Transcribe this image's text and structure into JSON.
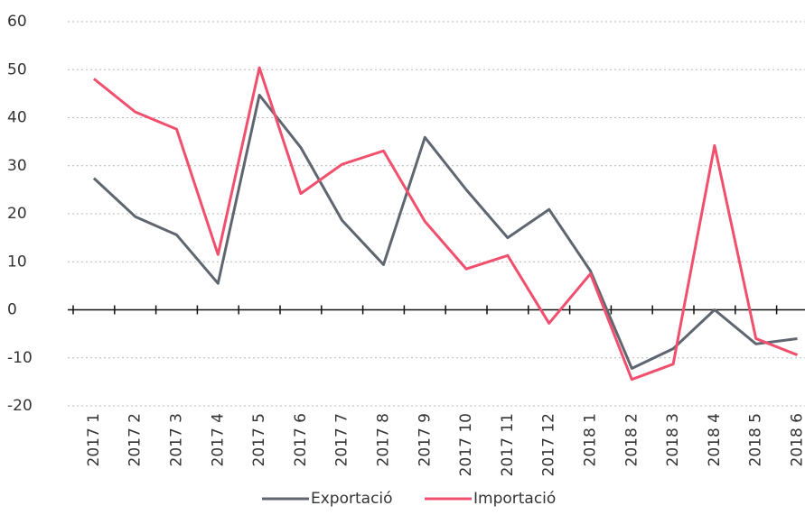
{
  "chart_data": {
    "type": "line",
    "categories": [
      "2017 1",
      "2017 2",
      "2017 3",
      "2017 4",
      "2017 5",
      "2017 6",
      "2017 7",
      "2017 8",
      "2017 9",
      "2017 10",
      "2017 11",
      "2017 12",
      "2018 1",
      "2018 2",
      "2018 3",
      "2018 4",
      "2018 5",
      "2018 6"
    ],
    "series": [
      {
        "name": "Exportació",
        "color": "#5f6670",
        "values": [
          27.4,
          19.4,
          15.6,
          5.5,
          44.7,
          33.8,
          18.6,
          9.4,
          35.9,
          25,
          15,
          20.9,
          8.1,
          -12.2,
          -8.1,
          0,
          -7.1,
          -6
        ]
      },
      {
        "name": "Importació",
        "color": "#f0506e",
        "values": [
          48.1,
          41.2,
          37.6,
          11.5,
          50.4,
          24.2,
          30.3,
          33.1,
          18.4,
          8.5,
          11.3,
          -2.8,
          7.5,
          -14.5,
          -11.3,
          34.2,
          -6,
          -9.4
        ]
      }
    ],
    "ylim": [
      -20,
      60
    ],
    "yticks": [
      -20,
      -10,
      0,
      10,
      20,
      30,
      40,
      50,
      60
    ],
    "grid": true,
    "legend": "bottom"
  }
}
